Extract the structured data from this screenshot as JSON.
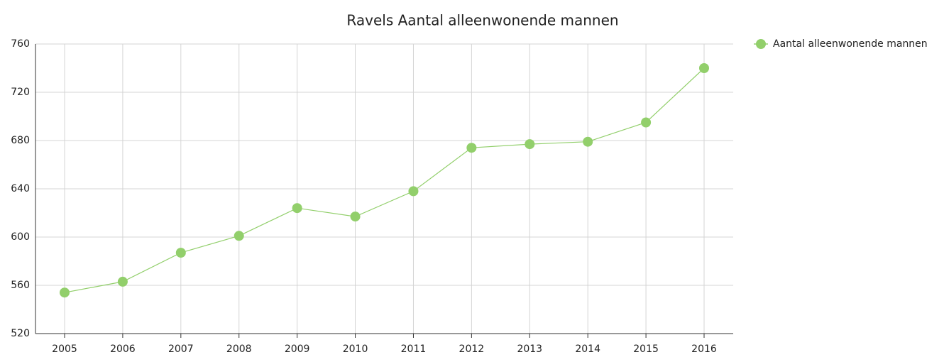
{
  "chart_data": {
    "type": "line",
    "title": "Ravels  Aantal alleenwonende mannen",
    "categories": [
      "2005",
      "2006",
      "2007",
      "2008",
      "2009",
      "2010",
      "2011",
      "2012",
      "2013",
      "2014",
      "2015",
      "2016"
    ],
    "series": [
      {
        "name": "Aantal alleenwonende mannen",
        "color": "#92cf6b",
        "values": [
          554,
          563,
          587,
          601,
          624,
          617,
          638,
          674,
          677,
          679,
          695,
          740
        ]
      }
    ],
    "ylim": [
      520,
      760
    ],
    "yticks": [
      520,
      560,
      600,
      640,
      680,
      720,
      760
    ],
    "grid": true,
    "legend": "top-right"
  }
}
